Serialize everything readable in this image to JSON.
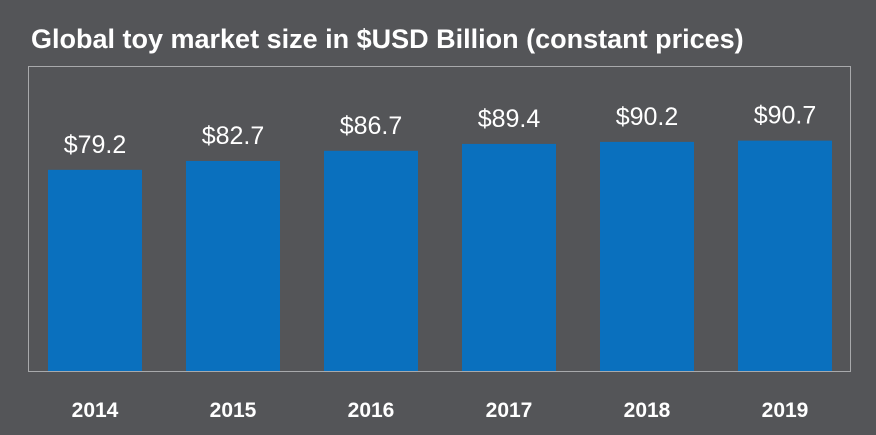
{
  "chart_data": {
    "type": "bar",
    "title": "Global toy market size in $USD Billion (constant prices)",
    "categories": [
      "2014",
      "2015",
      "2016",
      "2017",
      "2018",
      "2019"
    ],
    "values": [
      79.2,
      82.7,
      86.7,
      89.4,
      90.2,
      90.7
    ],
    "data_labels": [
      "$79.2",
      "$82.7",
      "$86.7",
      "$89.4",
      "$90.2",
      "$90.7"
    ],
    "xlabel": "",
    "ylabel": "",
    "grid": false,
    "legend": "none",
    "colors": {
      "background": "#545558",
      "bar": "#0a70be",
      "text": "#ffffff",
      "frame": "#a8a9ab"
    }
  }
}
